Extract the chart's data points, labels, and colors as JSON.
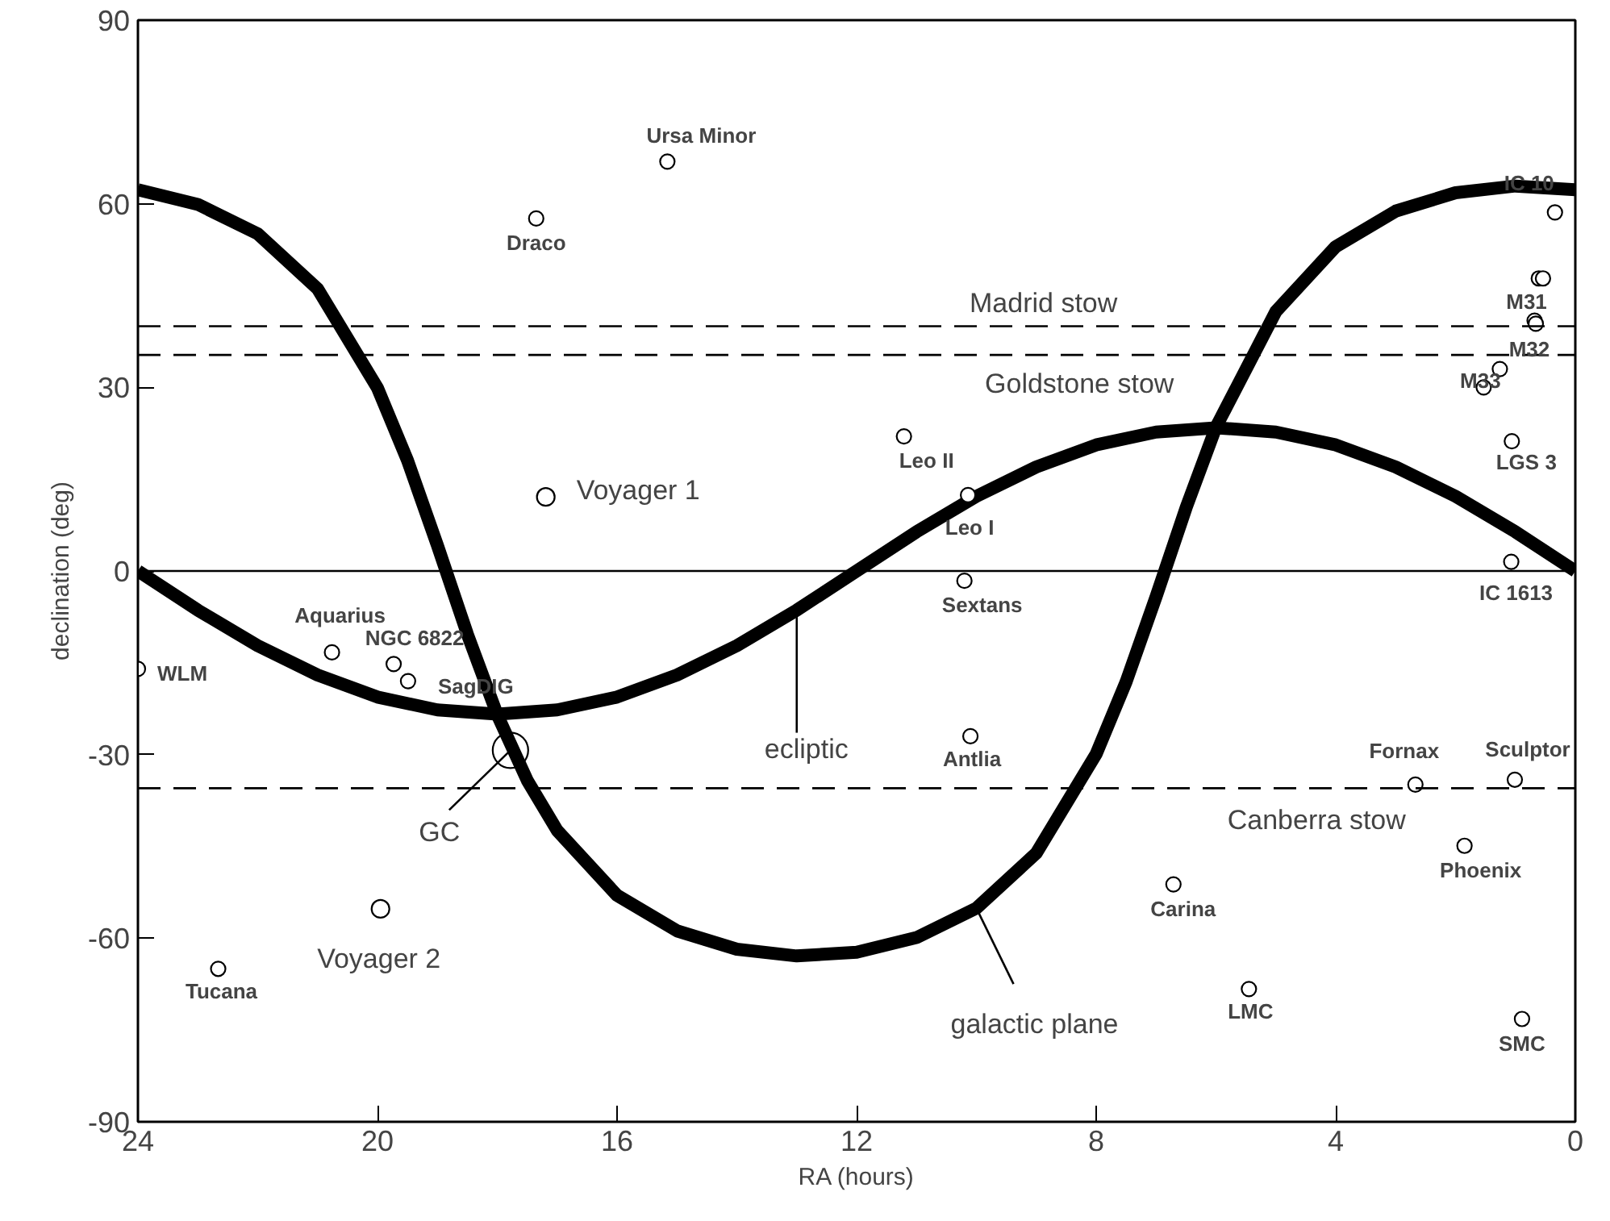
{
  "chart_data": {
    "type": "scatter",
    "xlabel": "RA (hours)",
    "ylabel": "declination (deg)",
    "xlim": [
      24,
      0
    ],
    "xticks": [
      24,
      20,
      16,
      12,
      8,
      4,
      0
    ],
    "ylim": [
      -90,
      90
    ],
    "yticks": [
      -90,
      -60,
      -30,
      0,
      30,
      60,
      90
    ],
    "grid": false,
    "series": [
      {
        "type": "line",
        "color": "#000000",
        "x": [
          0,
          1,
          2,
          3,
          4,
          5,
          6,
          7,
          8,
          9,
          10,
          11,
          12,
          13,
          14,
          15,
          16,
          17,
          18,
          19,
          20,
          21,
          22,
          23,
          24
        ],
        "values": [
          0,
          6.4,
          12.2,
          17.0,
          20.6,
          22.7,
          23.4,
          22.7,
          20.6,
          17.0,
          12.2,
          6.4,
          0,
          -6.4,
          -12.2,
          -17.0,
          -20.6,
          -22.7,
          -23.4,
          -22.7,
          -20.6,
          -17.0,
          -12.2,
          -6.4,
          0
        ]
      },
      {
        "type": "line",
        "color": "#000000",
        "x": [
          0,
          1,
          2,
          3,
          4,
          5,
          6,
          6.5,
          7,
          7.5,
          8,
          9,
          10,
          11,
          12,
          13,
          14,
          15,
          16,
          17,
          17.5,
          18,
          18.5,
          19,
          19.5,
          20,
          21,
          22,
          23,
          24
        ],
        "values": [
          62.3,
          62.9,
          61.8,
          58.8,
          53.0,
          42.4,
          23.5,
          10.3,
          -4.2,
          -18.1,
          -29.9,
          -46.1,
          -55.1,
          -59.9,
          -62.3,
          -62.9,
          -61.8,
          -58.8,
          -53.0,
          -42.4,
          -34.2,
          -23.5,
          -10.3,
          4.2,
          18.1,
          29.9,
          46.1,
          55.1,
          59.9,
          62.3
        ]
      },
      {
        "marker": "circle",
        "color": "#000000",
        "x": [
          15.16,
          17.35,
          11.21,
          10.14,
          10.2,
          10.1,
          20.76,
          19.73,
          19.49,
          24.0,
          22.66,
          6.71,
          5.45,
          0.89,
          1.85,
          2.67,
          1.01,
          1.06,
          1.07,
          1.53,
          0.68,
          0.66,
          0.34,
          0.61,
          0.54,
          1.26
        ],
        "values": [
          66.9,
          57.6,
          22.0,
          12.4,
          -1.6,
          -27.0,
          -13.3,
          -15.2,
          -18.0,
          -16.0,
          -65.0,
          -51.2,
          -68.3,
          -73.2,
          -44.9,
          -34.9,
          -34.1,
          21.2,
          1.5,
          30.0,
          40.9,
          40.4,
          58.6,
          47.8,
          47.8,
          33.0
        ]
      },
      {
        "type": "bubble",
        "marker": "circle",
        "color": "#000000",
        "x": [
          17.19,
          19.95,
          17.78
        ],
        "values": [
          12.1,
          -55.2,
          -29.3
        ],
        "sizes": [
          0.25,
          0.25,
          1
        ]
      }
    ],
    "ref_lines": [
      {
        "axis": "y",
        "value": 40.0,
        "label": "Madrid stow",
        "line_style": "dashed"
      },
      {
        "axis": "y",
        "value": 35.3,
        "label": "Goldstone stow",
        "line_style": "dashed"
      },
      {
        "axis": "y",
        "value": -35.5,
        "label": "Canberra stow",
        "line_style": "dashed"
      },
      {
        "axis": "y",
        "value": 0,
        "line_style": "solid"
      }
    ],
    "annotations": [
      {
        "text": "Ursa Minor",
        "x": 15.16,
        "y": 66.9
      },
      {
        "text": "Draco",
        "x": 17.35,
        "y": 57.6
      },
      {
        "text": "Voyager 1",
        "x": 17.19,
        "y": 12.1
      },
      {
        "text": "Leo II",
        "x": 11.21,
        "y": 22.0
      },
      {
        "text": "Leo I",
        "x": 10.14,
        "y": 12.4
      },
      {
        "text": "Sextans",
        "x": 10.2,
        "y": -1.6
      },
      {
        "text": "Antlia",
        "x": 10.1,
        "y": -27.0
      },
      {
        "text": "Aquarius",
        "x": 20.76,
        "y": -13.3
      },
      {
        "text": "NGC 6822",
        "x": 19.73,
        "y": -15.2
      },
      {
        "text": "SagDIG",
        "x": 19.49,
        "y": -18.0
      },
      {
        "text": "WLM",
        "x": 24.0,
        "y": -16.0
      },
      {
        "text": "Tucana",
        "x": 22.66,
        "y": -65.0
      },
      {
        "text": "Voyager 2",
        "x": 19.95,
        "y": -55.2
      },
      {
        "text": "Carina",
        "x": 6.71,
        "y": -51.2
      },
      {
        "text": "LMC",
        "x": 5.45,
        "y": -68.3
      },
      {
        "text": "SMC",
        "x": 0.89,
        "y": -73.2
      },
      {
        "text": "Phoenix",
        "x": 1.85,
        "y": -44.9
      },
      {
        "text": "Fornax",
        "x": 2.67,
        "y": -34.9
      },
      {
        "text": "Sculptor",
        "x": 1.01,
        "y": -34.1
      },
      {
        "text": "LGS 3",
        "x": 1.06,
        "y": 21.2
      },
      {
        "text": "IC 1613",
        "x": 1.07,
        "y": 1.5
      },
      {
        "text": "M33",
        "x": 1.53,
        "y": 30.0
      },
      {
        "text": "M31",
        "x": 0.68,
        "y": 40.9
      },
      {
        "text": "M32",
        "x": 0.66,
        "y": 40.4
      },
      {
        "text": "IC 10",
        "x": 0.34,
        "y": 58.6
      },
      {
        "text": "GC",
        "x": 17.78,
        "y": -29.3
      },
      {
        "text": "ecliptic",
        "x": 13,
        "y": -6.4
      },
      {
        "text": "galactic plane",
        "x": 10,
        "y": -55.1
      }
    ]
  }
}
